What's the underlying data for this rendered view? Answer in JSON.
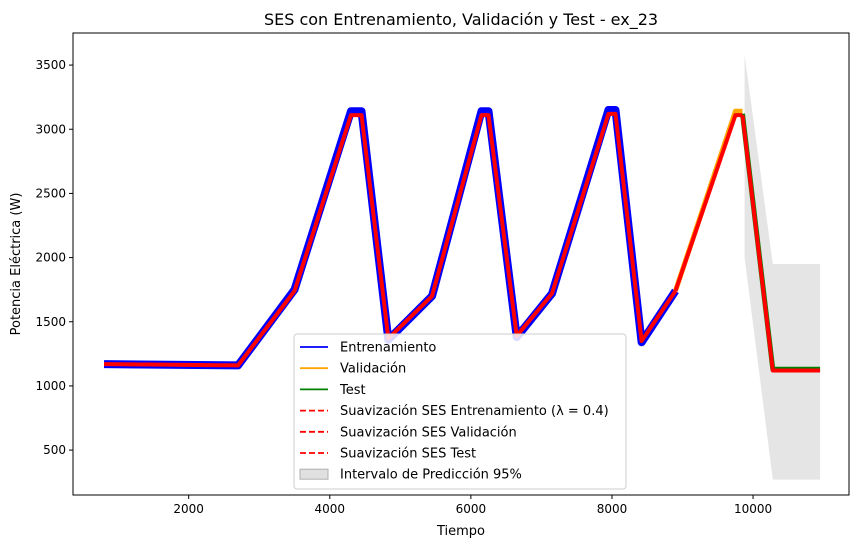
{
  "chart_data": {
    "type": "line",
    "title": "SES con Entrenamiento, Validación y Test - ex_23",
    "xlabel": "Tiempo",
    "ylabel": "Potencia Eléctrica (W)",
    "xlim": [
      360,
      11360
    ],
    "ylim": [
      150,
      3750
    ],
    "xticks": [
      2000,
      4000,
      6000,
      8000,
      10000
    ],
    "yticks": [
      500,
      1000,
      1500,
      2000,
      2500,
      3000,
      3500
    ],
    "legend_position": "lower-center",
    "grid": false,
    "series": [
      {
        "name": "Entrenamiento",
        "color": "#0000ff",
        "style": "solid",
        "points": [
          [
            800,
            1170
          ],
          [
            2700,
            1160
          ],
          [
            3500,
            1750
          ],
          [
            4300,
            3140
          ],
          [
            4450,
            3140
          ],
          [
            4830,
            1360
          ],
          [
            5450,
            1700
          ],
          [
            6150,
            3140
          ],
          [
            6250,
            3140
          ],
          [
            6650,
            1380
          ],
          [
            7150,
            1720
          ],
          [
            7950,
            3150
          ],
          [
            8050,
            3150
          ],
          [
            8420,
            1340
          ],
          [
            8900,
            1740
          ]
        ]
      },
      {
        "name": "Validación",
        "color": "#ffa500",
        "style": "solid",
        "points": [
          [
            8900,
            1740
          ],
          [
            9750,
            3140
          ],
          [
            9850,
            3140
          ]
        ]
      },
      {
        "name": "Test",
        "color": "#008000",
        "style": "solid",
        "points": [
          [
            9850,
            3120
          ],
          [
            10280,
            1130
          ],
          [
            10950,
            1130
          ]
        ]
      },
      {
        "name": "Suavización SES Entrenamiento (λ = 0.4)",
        "color": "#ff0000",
        "style": "dashed",
        "points": [
          [
            800,
            1170
          ],
          [
            2700,
            1160
          ],
          [
            3500,
            1740
          ],
          [
            4300,
            3110
          ],
          [
            4450,
            3110
          ],
          [
            4830,
            1370
          ],
          [
            5450,
            1700
          ],
          [
            6150,
            3110
          ],
          [
            6250,
            3110
          ],
          [
            6650,
            1390
          ],
          [
            7150,
            1720
          ],
          [
            7950,
            3120
          ],
          [
            8050,
            3120
          ],
          [
            8420,
            1350
          ],
          [
            8900,
            1740
          ]
        ]
      },
      {
        "name": "Suavización SES Validación",
        "color": "#ff0000",
        "style": "dashed",
        "points": [
          [
            8900,
            1740
          ],
          [
            9750,
            3110
          ],
          [
            9850,
            3110
          ]
        ]
      },
      {
        "name": "Suavización SES Test",
        "color": "#ff0000",
        "style": "dashed",
        "points": [
          [
            9850,
            3110
          ],
          [
            10280,
            1120
          ],
          [
            10950,
            1120
          ]
        ]
      }
    ],
    "interval": {
      "name": "Intervalo de Predicción 95%",
      "color": "#d3d3d3",
      "upper": [
        [
          9880,
          3580
        ],
        [
          10280,
          1950
        ],
        [
          10950,
          1950
        ]
      ],
      "lower": [
        [
          9880,
          2000
        ],
        [
          10280,
          270
        ],
        [
          10950,
          270
        ]
      ]
    }
  }
}
